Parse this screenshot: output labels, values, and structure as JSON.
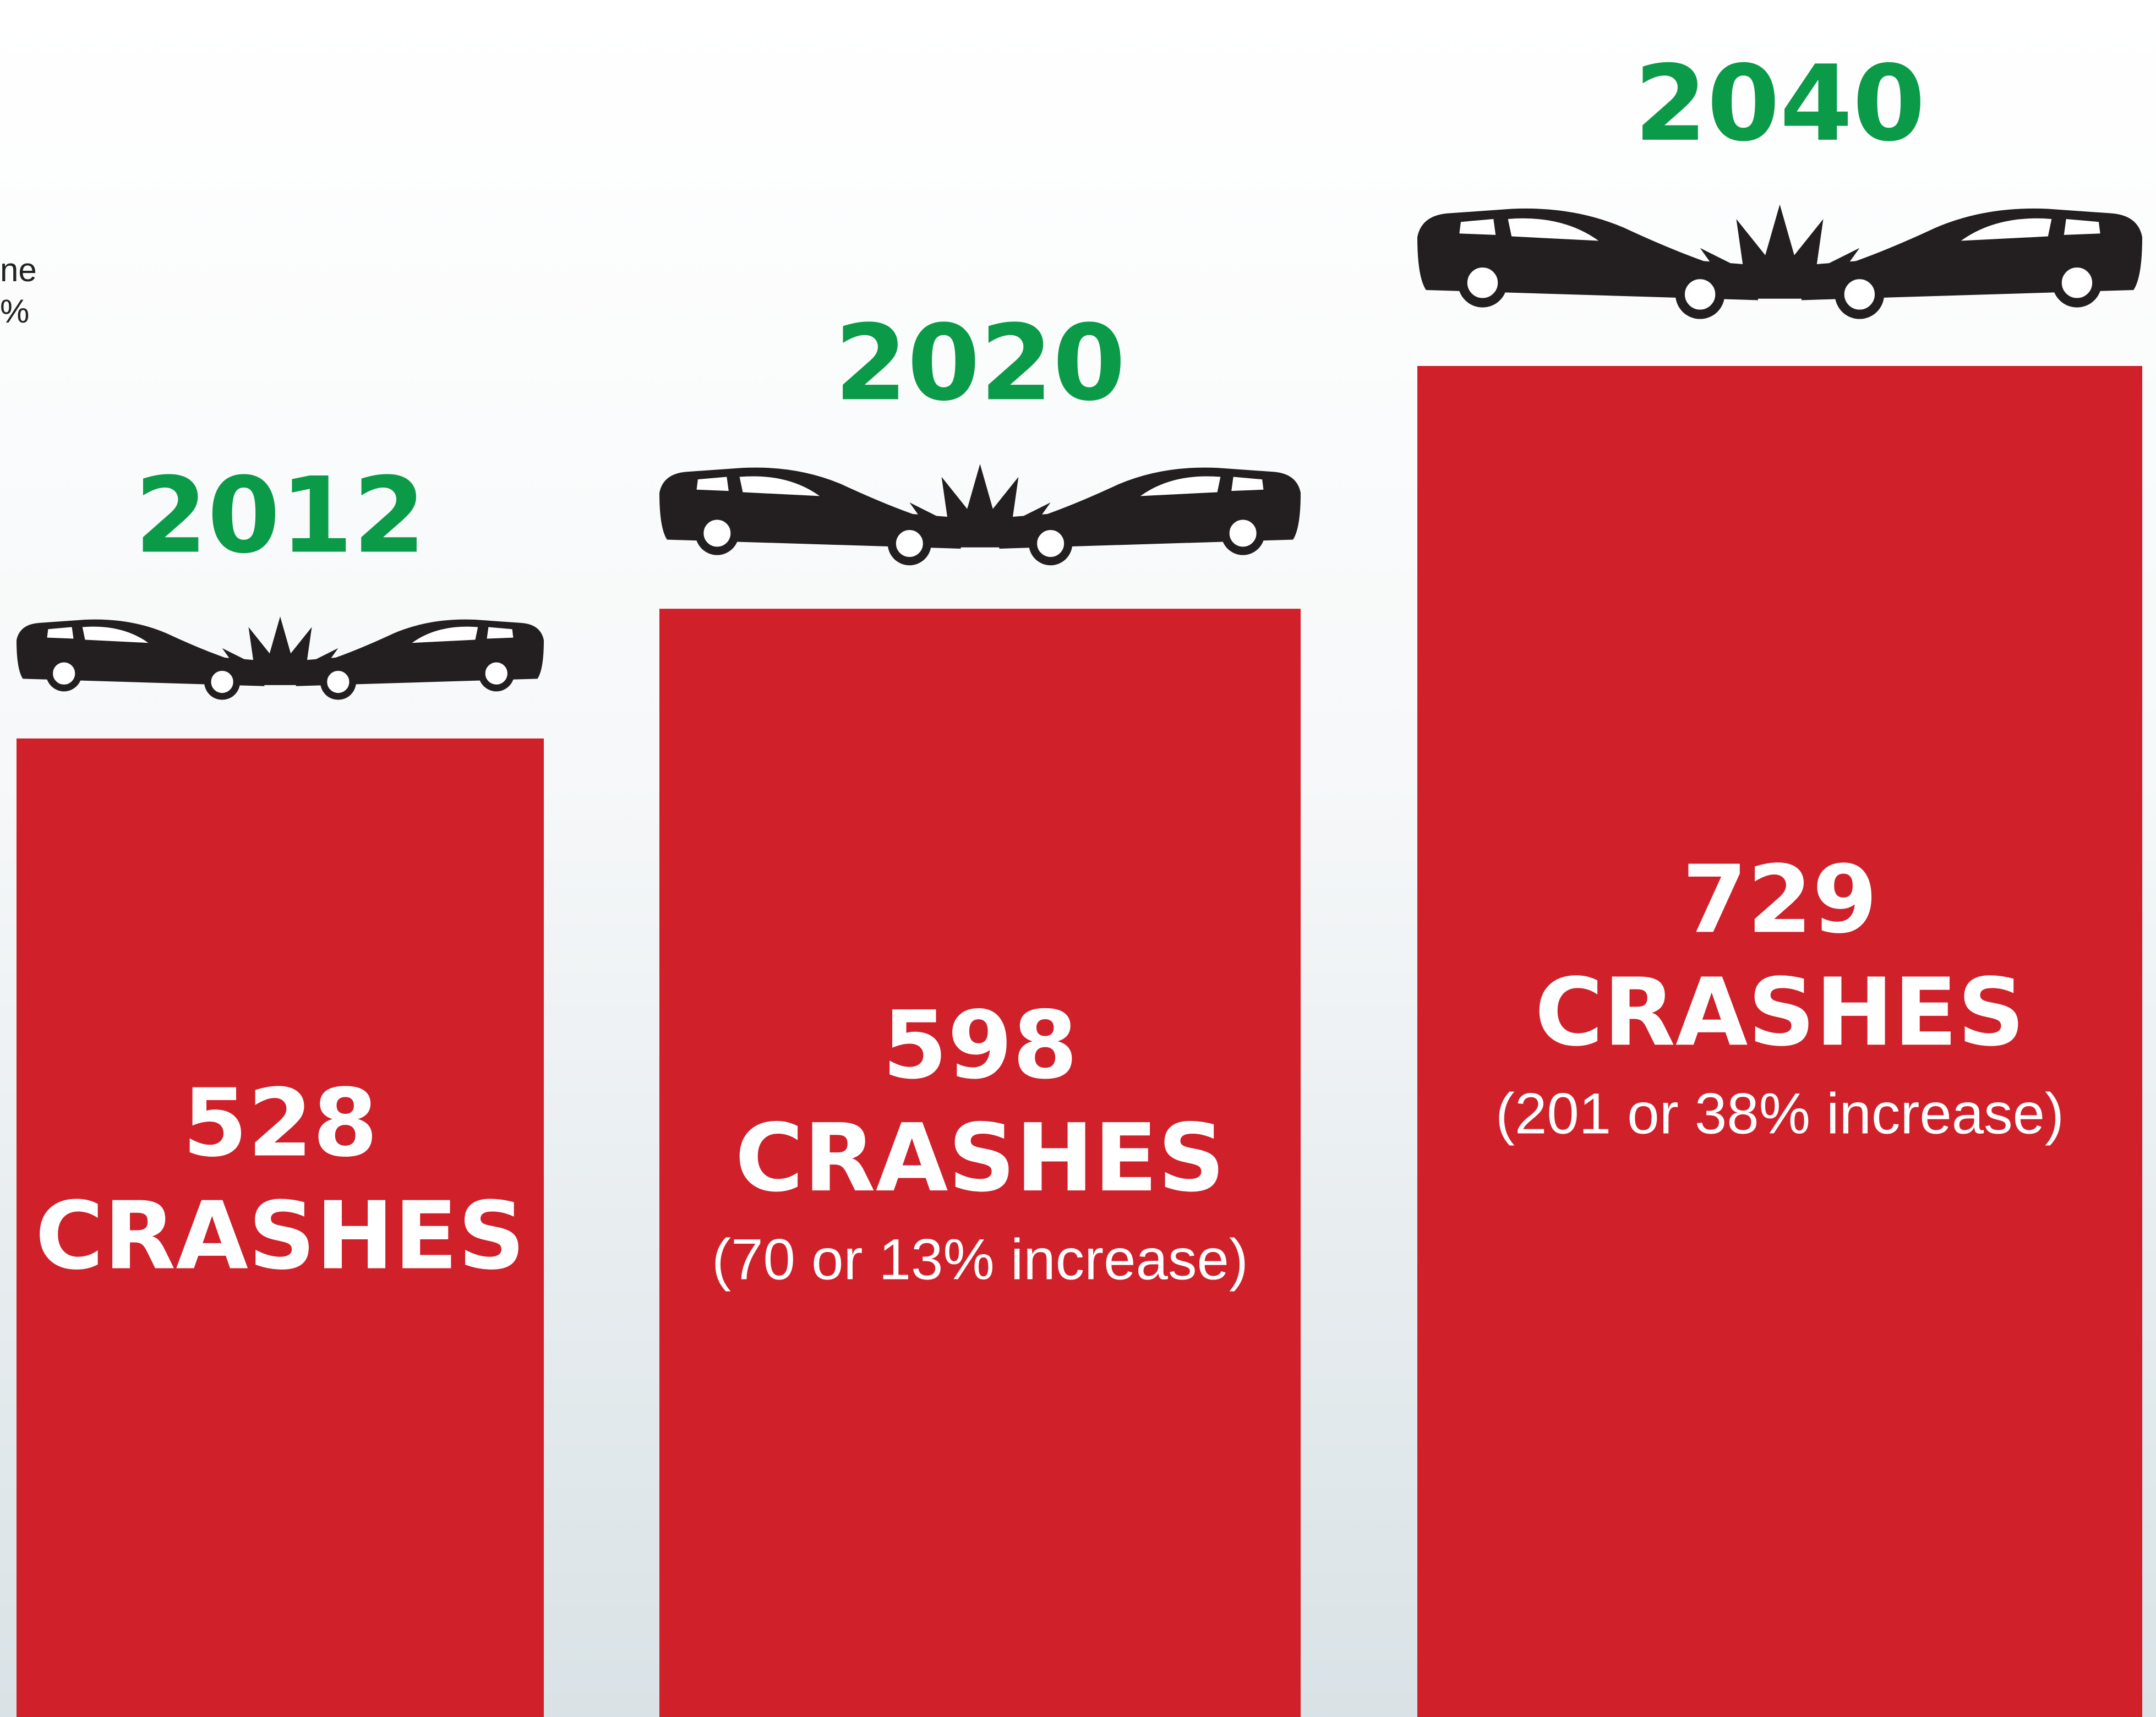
{
  "chart_data": {
    "type": "bar",
    "categories": [
      "2012",
      "2020",
      "2040"
    ],
    "values": [
      528,
      598,
      729
    ],
    "value_suffix": "CRASHES",
    "notes": [
      null,
      "(70 or 13% increase)",
      "(201 or 38% increase)"
    ],
    "annotations": [
      "ne",
      "%"
    ],
    "color": "#d0202a",
    "category_color": "#0a9a48"
  }
}
